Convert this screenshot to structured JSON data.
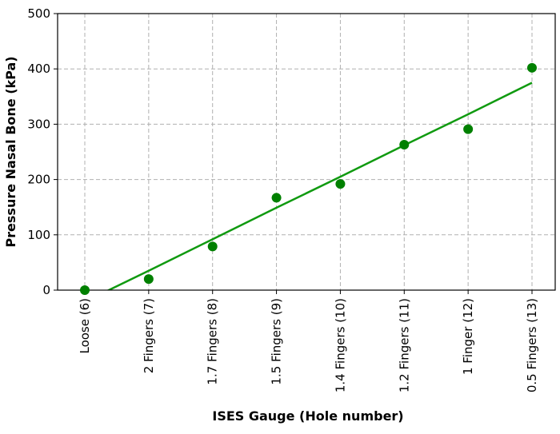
{
  "chart_data": {
    "type": "scatter",
    "x_label": "ISES Gauge (Hole number)",
    "y_label": "Pressure Nasal Bone (kPa)",
    "categories": [
      "Loose (6)",
      "2 Fingers (7)",
      "1.7 Fingers (8)",
      "1.5 Fingers (9)",
      "1.4 Fingers (10)",
      "1.2 Fingers (11)",
      "1 Finger (12)",
      "0.5 Fingers (13)"
    ],
    "series": [
      {
        "style": "markers",
        "color": "#008000",
        "values": [
          0,
          20,
          79,
          167,
          192,
          263,
          291,
          402
        ]
      },
      {
        "style": "line",
        "color": "#109a10",
        "values": [
          -21,
          35,
          92,
          149,
          205,
          262,
          318,
          375
        ]
      }
    ],
    "ylim": [
      0,
      500
    ],
    "yticks": [
      0,
      100,
      200,
      300,
      400,
      500
    ],
    "grid": true
  }
}
